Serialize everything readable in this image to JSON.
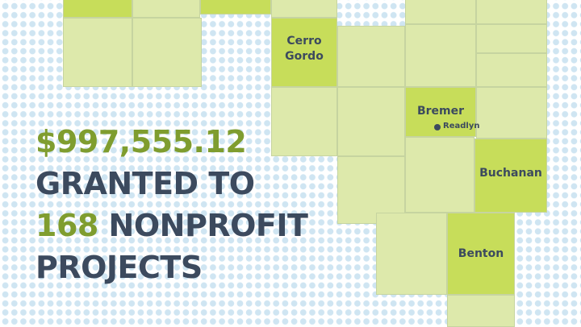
{
  "headline": {
    "amount": "$997,555.12",
    "line2": "GRANTED TO",
    "count": "168",
    "line3_rest": " NONPROFIT",
    "line4": "PROJECTS"
  },
  "map": {
    "counties": {
      "cerro_gordo": "Cerro\nGordo",
      "bremer": "Bremer",
      "buchanan": "Buchanan",
      "benton": "Benton"
    },
    "towns": {
      "readlyn": "Readlyn"
    }
  },
  "colors": {
    "highlight_county": "#c7dd5a",
    "other_county": "#dde9ab",
    "text_dark": "#3c4a5e",
    "text_green": "#7f9d2f",
    "dot_pattern": "#cfe5f2"
  }
}
